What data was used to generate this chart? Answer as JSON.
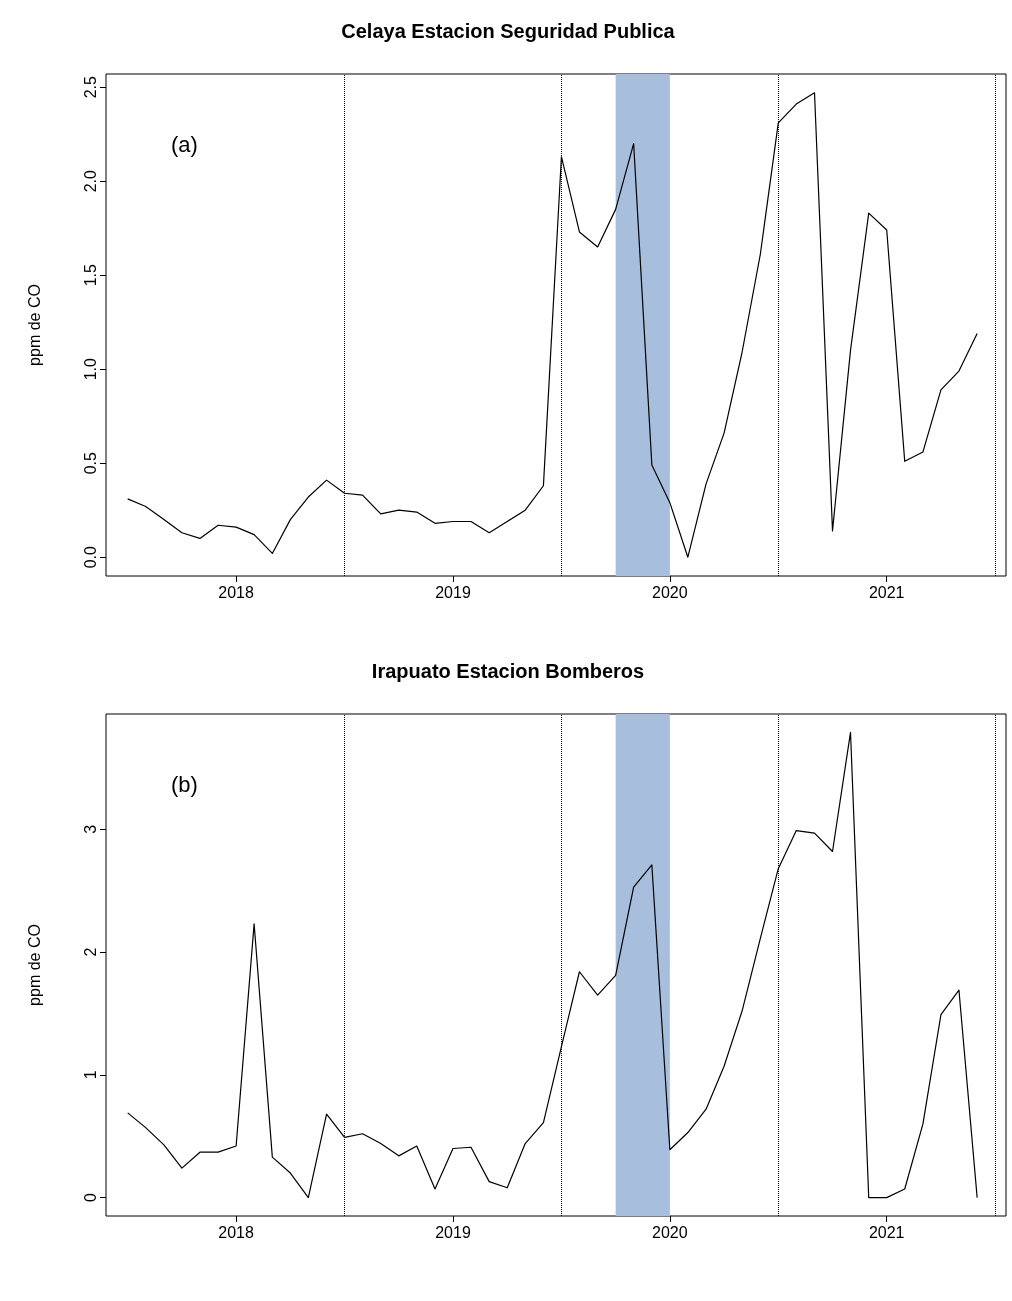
{
  "chart_data": [
    {
      "type": "line",
      "title": "Celaya Estacion Seguridad Publica",
      "ylabel": "ppm de CO",
      "annotations": [
        "(a)"
      ],
      "grid": false,
      "marker": "none",
      "line_style": "solid",
      "x": [
        2017.5,
        2017.583,
        2017.667,
        2017.75,
        2017.833,
        2017.917,
        2018,
        2018.083,
        2018.167,
        2018.25,
        2018.333,
        2018.417,
        2018.5,
        2018.583,
        2018.667,
        2018.75,
        2018.833,
        2018.917,
        2019,
        2019.083,
        2019.167,
        2019.25,
        2019.333,
        2019.417,
        2019.5,
        2019.583,
        2019.667,
        2019.75,
        2019.833,
        2019.917,
        2020,
        2020.083,
        2020.167,
        2020.25,
        2020.333,
        2020.417,
        2020.5,
        2020.583,
        2020.667,
        2020.75,
        2020.833,
        2020.917,
        2021,
        2021.083,
        2021.167,
        2021.25,
        2021.333,
        2021.417
      ],
      "series": [
        {
          "color": "#000000",
          "values": [
            0.31,
            0.27,
            0.2,
            0.13,
            0.1,
            0.17,
            0.16,
            0.12,
            0.02,
            0.2,
            0.32,
            0.41,
            0.34,
            0.33,
            0.23,
            0.25,
            0.24,
            0.18,
            0.19,
            0.19,
            0.13,
            0.19,
            0.25,
            0.38,
            2.13,
            1.73,
            1.65,
            1.85,
            2.2,
            0.49,
            0.29,
            0.0,
            0.39,
            0.66,
            1.09,
            1.61,
            2.31,
            2.41,
            2.47,
            0.14,
            1.1,
            1.83,
            1.74,
            0.51,
            0.56,
            0.89,
            0.99,
            1.19
          ]
        }
      ],
      "xlim": [
        2017.4,
        2021.55
      ],
      "xticks": [
        2018,
        2019,
        2020,
        2021
      ],
      "ylim": [
        -0.1,
        2.57
      ],
      "yticks": [
        {
          "value": 0,
          "label": "0.0"
        },
        0.5,
        {
          "value": 1,
          "label": "1.0"
        },
        1.5,
        {
          "value": 2,
          "label": "2.0"
        },
        2.5
      ],
      "ref_lines": [
        {
          "axis": "x",
          "value": 2018.5,
          "label": null,
          "color": "#000000",
          "line_style": "dotted"
        },
        {
          "axis": "x",
          "value": 2019.5,
          "label": null,
          "color": "#000000",
          "line_style": "dotted"
        },
        {
          "axis": "x",
          "value": 2020.5,
          "label": null,
          "color": "#000000",
          "line_style": "dotted"
        },
        {
          "axis": "x",
          "value": 2021.5,
          "label": null,
          "color": "#000000",
          "line_style": "dotted"
        }
      ],
      "bands": [
        {
          "axis": "x",
          "from": 2019.75,
          "to": 2020.0,
          "label": null,
          "color": "#a7bfdd"
        }
      ]
    },
    {
      "type": "line",
      "title": "Irapuato Estacion Bomberos",
      "ylabel": "ppm de CO",
      "annotations": [
        "(b)"
      ],
      "grid": false,
      "marker": "none",
      "line_style": "solid",
      "x": [
        2017.5,
        2017.583,
        2017.667,
        2017.75,
        2017.833,
        2017.917,
        2018,
        2018.083,
        2018.167,
        2018.25,
        2018.333,
        2018.417,
        2018.5,
        2018.583,
        2018.667,
        2018.75,
        2018.833,
        2018.917,
        2019,
        2019.083,
        2019.167,
        2019.25,
        2019.333,
        2019.417,
        2019.5,
        2019.583,
        2019.667,
        2019.75,
        2019.833,
        2019.917,
        2020,
        2020.083,
        2020.167,
        2020.25,
        2020.333,
        2020.417,
        2020.5,
        2020.583,
        2020.667,
        2020.75,
        2020.833,
        2020.917,
        2021,
        2021.083,
        2021.167,
        2021.25,
        2021.333,
        2021.417
      ],
      "series": [
        {
          "color": "#000000",
          "values": [
            0.69,
            0.57,
            0.43,
            0.24,
            0.37,
            0.37,
            0.42,
            2.23,
            0.33,
            0.2,
            0.0,
            0.68,
            0.49,
            0.52,
            0.44,
            0.34,
            0.42,
            0.07,
            0.4,
            0.41,
            0.13,
            0.08,
            0.44,
            0.61,
            1.23,
            1.84,
            1.65,
            1.81,
            2.53,
            2.71,
            0.39,
            0.53,
            0.72,
            1.07,
            1.52,
            2.11,
            2.68,
            2.99,
            2.97,
            2.82,
            3.79,
            0.0,
            0.0,
            0.07,
            0.6,
            1.49,
            1.69,
            0.0
          ]
        }
      ],
      "xlim": [
        2017.4,
        2021.55
      ],
      "xticks": [
        2018,
        2019,
        2020,
        2021
      ],
      "ylim": [
        -0.15,
        3.94
      ],
      "yticks": [
        0,
        1,
        2,
        3
      ],
      "ref_lines": [
        {
          "axis": "x",
          "value": 2018.5,
          "label": null,
          "color": "#000000",
          "line_style": "dotted"
        },
        {
          "axis": "x",
          "value": 2019.5,
          "label": null,
          "color": "#000000",
          "line_style": "dotted"
        },
        {
          "axis": "x",
          "value": 2020.5,
          "label": null,
          "color": "#000000",
          "line_style": "dotted"
        },
        {
          "axis": "x",
          "value": 2021.5,
          "label": null,
          "color": "#000000",
          "line_style": "dotted"
        }
      ],
      "bands": [
        {
          "axis": "x",
          "from": 2019.75,
          "to": 2020.0,
          "label": null,
          "color": "#a7bfdd"
        }
      ]
    }
  ]
}
